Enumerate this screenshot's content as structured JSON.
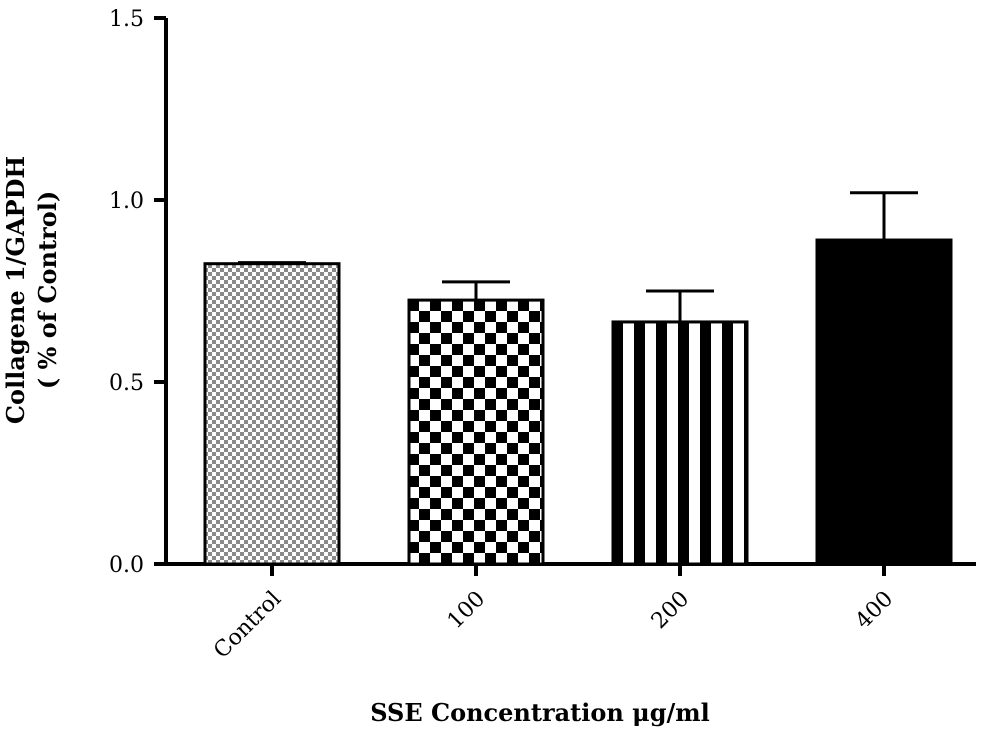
{
  "chart_data": {
    "type": "bar",
    "title": "",
    "xlabel": "SSE Concentration μg/ml",
    "ylabel": [
      "Collagene 1/GAPDH",
      "( % of Control)"
    ],
    "categories": [
      "Control",
      "100",
      "200",
      "400"
    ],
    "values": [
      0.825,
      0.725,
      0.665,
      0.89
    ],
    "errors": [
      0.003,
      0.05,
      0.085,
      0.13
    ],
    "patterns": [
      "fine-checker",
      "coarse-checker",
      "vertical-stripes",
      "solid"
    ],
    "ylim": [
      0,
      1.5
    ],
    "yticks": [
      "0.0",
      "0.5",
      "1.0",
      "1.5"
    ],
    "grid": false,
    "colors": {
      "bar": "#000000",
      "fine_checker_light": "#ffffff",
      "fine_checker_dark": "#808080"
    }
  }
}
